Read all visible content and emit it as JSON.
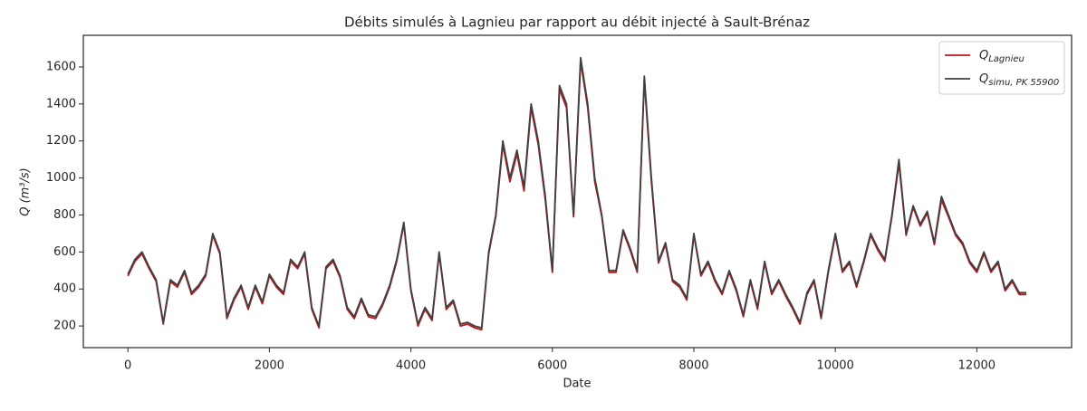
{
  "chart_data": {
    "type": "line",
    "title": "Débits simulés à Lagnieu par rapport au débit injecté à Sault-Brénaz",
    "xlabel": "Date",
    "ylabel": "Q (m³/s)",
    "x": [
      0,
      100,
      200,
      300,
      400,
      500,
      600,
      700,
      800,
      900,
      1000,
      1100,
      1200,
      1300,
      1400,
      1500,
      1600,
      1700,
      1800,
      1900,
      2000,
      2100,
      2200,
      2300,
      2400,
      2500,
      2600,
      2700,
      2800,
      2900,
      3000,
      3100,
      3200,
      3300,
      3400,
      3500,
      3600,
      3700,
      3800,
      3900,
      4000,
      4100,
      4200,
      4300,
      4400,
      4500,
      4600,
      4700,
      4800,
      4900,
      5000,
      5100,
      5200,
      5300,
      5400,
      5500,
      5600,
      5700,
      5800,
      5900,
      6000,
      6100,
      6200,
      6300,
      6400,
      6500,
      6600,
      6700,
      6800,
      6900,
      7000,
      7100,
      7200,
      7300,
      7400,
      7500,
      7600,
      7700,
      7800,
      7900,
      8000,
      8100,
      8200,
      8300,
      8400,
      8500,
      8600,
      8700,
      8800,
      8900,
      9000,
      9100,
      9200,
      9300,
      9400,
      9500,
      9600,
      9700,
      9800,
      9900,
      10000,
      10100,
      10200,
      10300,
      10400,
      10500,
      10600,
      10700,
      10800,
      10900,
      11000,
      11100,
      11200,
      11300,
      11400,
      11500,
      11600,
      11700,
      11800,
      11900,
      12000,
      12100,
      12200,
      12300,
      12400,
      12500,
      12600,
      12700
    ],
    "series": [
      {
        "name": "Q",
        "subscript": "Lagnieu",
        "color": "#c0151b",
        "values": [
          470,
          550,
          590,
          510,
          440,
          210,
          440,
          410,
          490,
          370,
          410,
          470,
          690,
          590,
          240,
          340,
          410,
          290,
          410,
          320,
          470,
          410,
          370,
          550,
          510,
          590,
          290,
          190,
          510,
          550,
          460,
          290,
          240,
          340,
          250,
          240,
          310,
          410,
          550,
          750,
          390,
          200,
          290,
          230,
          590,
          290,
          330,
          200,
          210,
          190,
          180,
          590,
          790,
          1180,
          980,
          1130,
          930,
          1380,
          1180,
          880,
          490,
          1480,
          1380,
          790,
          1630,
          1380,
          980,
          790,
          490,
          490,
          710,
          610,
          490,
          1530,
          980,
          540,
          640,
          440,
          410,
          340,
          690,
          470,
          540,
          440,
          370,
          490,
          390,
          250,
          440,
          290,
          540,
          370,
          440,
          360,
          290,
          210,
          370,
          440,
          240,
          490,
          690,
          490,
          540,
          410,
          540,
          690,
          610,
          550,
          790,
          1080,
          690,
          840,
          740,
          810,
          640,
          880,
          790,
          690,
          640,
          540,
          490,
          590,
          490,
          540,
          390,
          440,
          370,
          370
        ]
      },
      {
        "name": "Q",
        "subscript": "simu, PK 55900",
        "color": "#404040",
        "values": [
          480,
          560,
          600,
          520,
          450,
          220,
          450,
          420,
          500,
          380,
          420,
          480,
          700,
          600,
          250,
          350,
          420,
          300,
          420,
          330,
          480,
          420,
          380,
          560,
          520,
          600,
          300,
          200,
          520,
          560,
          470,
          300,
          250,
          350,
          260,
          250,
          320,
          420,
          560,
          760,
          400,
          210,
          300,
          240,
          600,
          300,
          340,
          210,
          220,
          200,
          190,
          600,
          800,
          1200,
          1000,
          1150,
          950,
          1400,
          1200,
          900,
          500,
          1500,
          1400,
          800,
          1650,
          1400,
          1000,
          800,
          500,
          500,
          720,
          620,
          500,
          1550,
          1000,
          550,
          650,
          450,
          420,
          350,
          700,
          480,
          550,
          450,
          380,
          500,
          400,
          260,
          450,
          300,
          550,
          380,
          450,
          370,
          300,
          220,
          380,
          450,
          250,
          500,
          700,
          500,
          550,
          420,
          550,
          700,
          620,
          560,
          800,
          1100,
          700,
          850,
          750,
          820,
          650,
          900,
          800,
          700,
          650,
          550,
          500,
          600,
          500,
          550,
          400,
          450,
          380,
          380
        ]
      }
    ],
    "xlim": [
      -630,
      13340
    ],
    "ylim": [
      83,
      1771
    ],
    "xticks": [
      0,
      2000,
      4000,
      6000,
      8000,
      10000,
      12000
    ],
    "yticks": [
      200,
      400,
      600,
      800,
      1000,
      1200,
      1400,
      1600
    ],
    "legend": "upper right"
  }
}
